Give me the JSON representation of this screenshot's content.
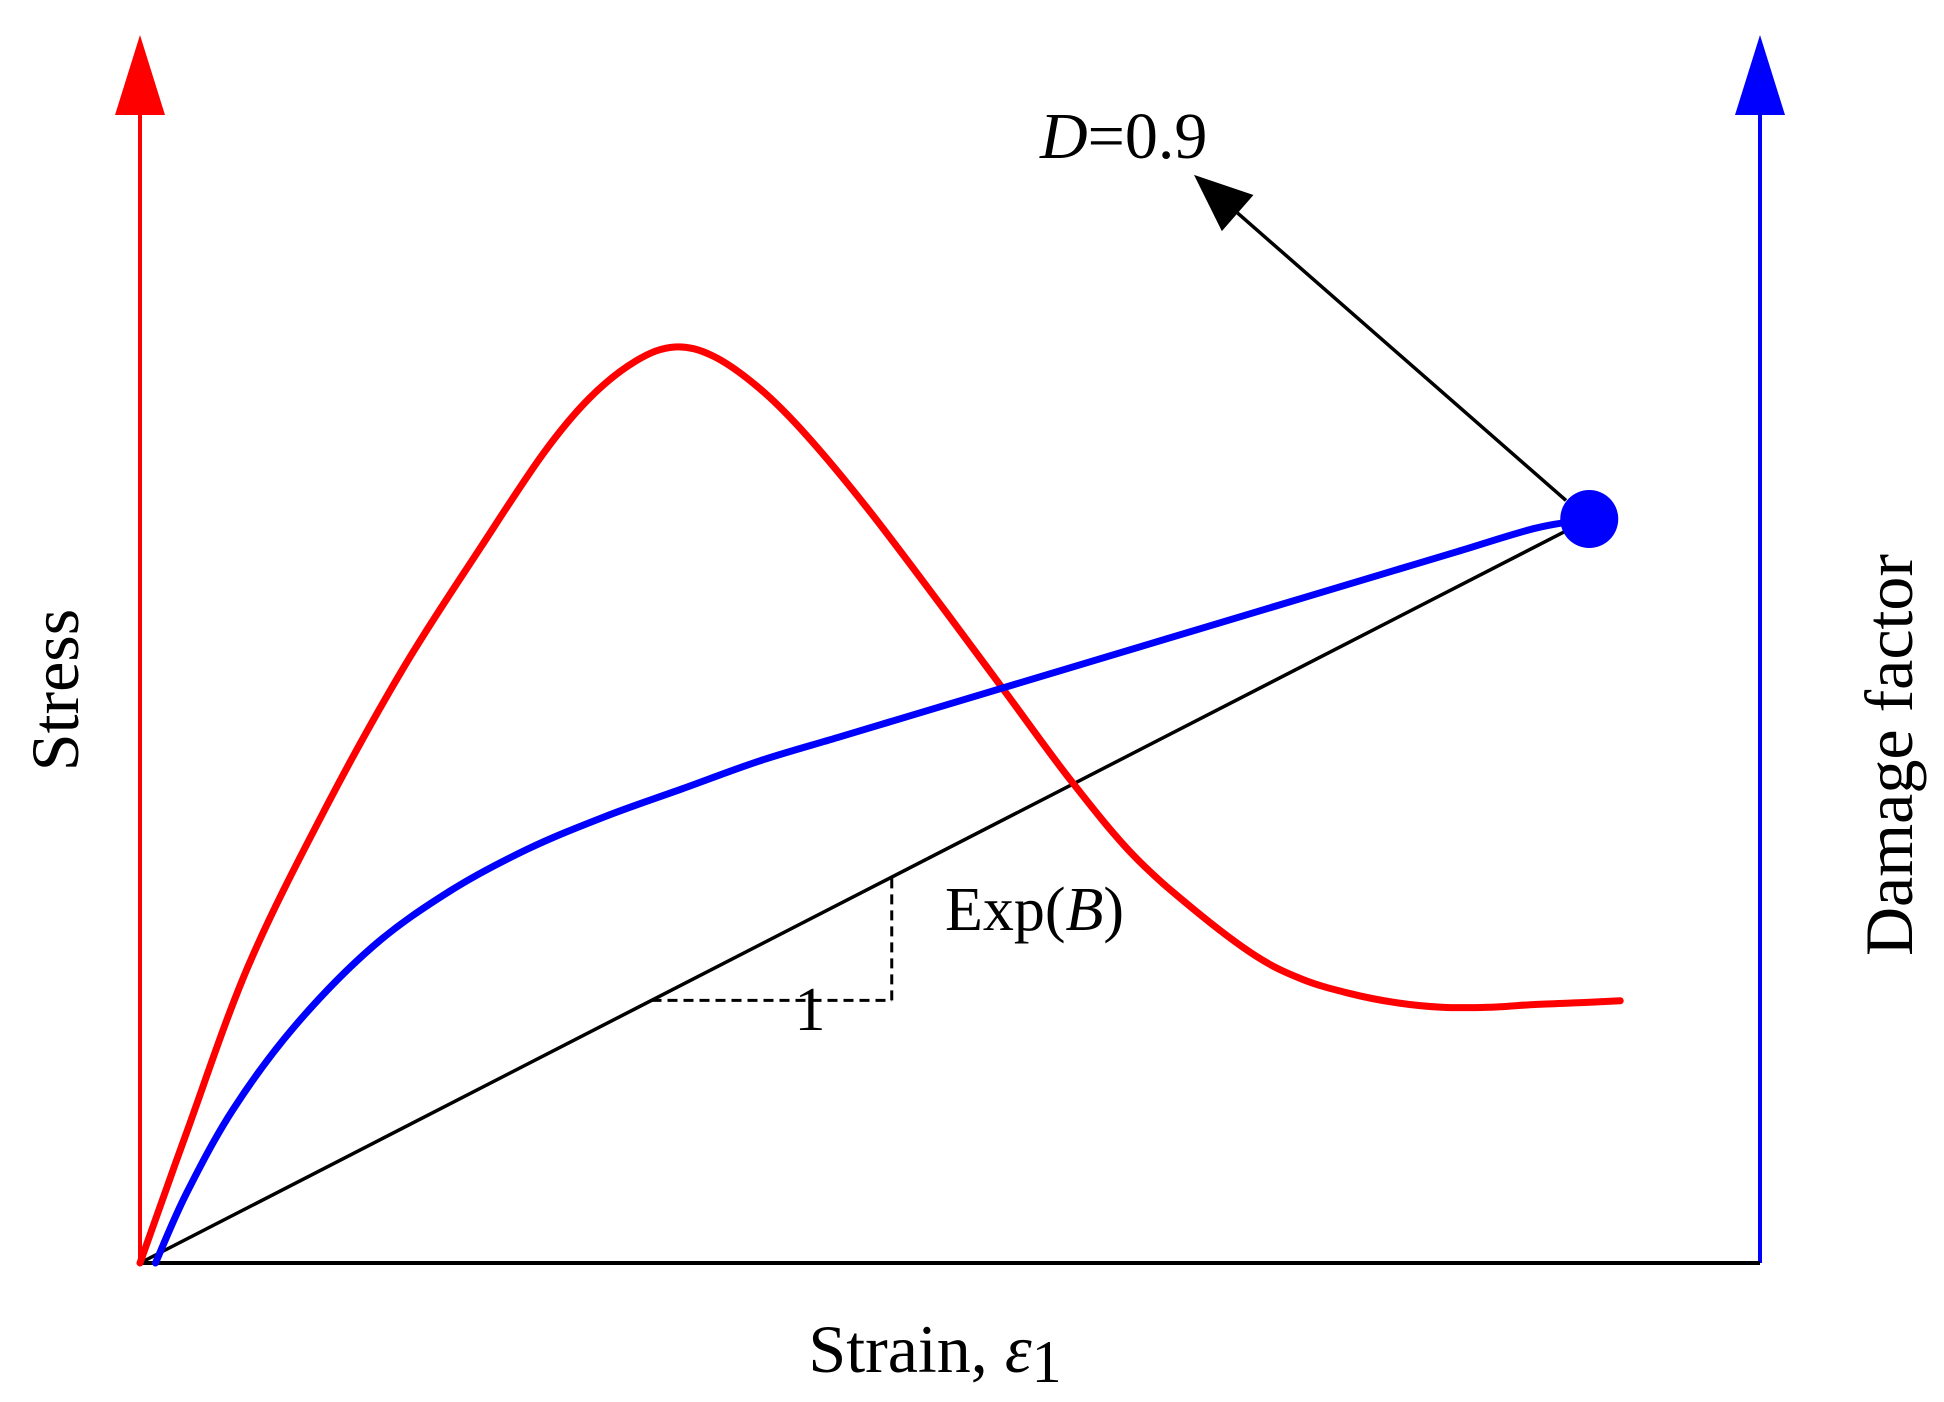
{
  "chart_data": {
    "type": "line",
    "title": "",
    "xlabel": "Strain, ",
    "xlabel_symbol": "ε",
    "xlabel_subscript": "1",
    "ylabel_left": "Stress",
    "ylabel_right": "Damage factor",
    "grid": false,
    "legend": "none",
    "xlim": [
      0,
      1
    ],
    "ylim": [
      0,
      1
    ],
    "ticks": "none",
    "series": [
      {
        "role": "stress-curve",
        "axis": "left",
        "color": "#ff0000",
        "x": [
          0.0,
          0.03,
          0.07,
          0.12,
          0.17,
          0.22,
          0.26,
          0.29,
          0.32,
          0.345,
          0.37,
          0.4,
          0.43,
          0.47,
          0.52,
          0.56,
          0.6,
          0.64,
          0.68,
          0.72,
          0.75,
          0.78,
          0.81,
          0.84,
          0.87,
          0.9,
          0.93,
          0.955
        ],
        "y": [
          0.0,
          0.14,
          0.32,
          0.49,
          0.64,
          0.77,
          0.87,
          0.93,
          0.97,
          0.985,
          0.975,
          0.94,
          0.89,
          0.81,
          0.7,
          0.61,
          0.52,
          0.44,
          0.38,
          0.33,
          0.305,
          0.29,
          0.28,
          0.275,
          0.275,
          0.278,
          0.28,
          0.282
        ]
      },
      {
        "role": "damage-curve",
        "axis": "right",
        "color": "#0000ff",
        "x": [
          0.01,
          0.03,
          0.06,
          0.1,
          0.15,
          0.2,
          0.25,
          0.3,
          0.35,
          0.4,
          0.45,
          0.5,
          0.55,
          0.6,
          0.65,
          0.7,
          0.75,
          0.8,
          0.85,
          0.9,
          0.935
        ],
        "y": [
          0.0,
          0.075,
          0.165,
          0.255,
          0.34,
          0.4,
          0.445,
          0.48,
          0.51,
          0.54,
          0.565,
          0.59,
          0.615,
          0.64,
          0.665,
          0.69,
          0.715,
          0.74,
          0.765,
          0.79,
          0.8
        ]
      }
    ],
    "marker": {
      "x": 0.935,
      "y": 0.8,
      "color": "#0000ff"
    },
    "reference_line": {
      "x": [
        0.0,
        0.935
      ],
      "y": [
        0.0,
        0.8
      ],
      "color": "#000000"
    },
    "slope_triangle": {
      "x_start": 0.33,
      "x_end": 0.485,
      "run_label": "1",
      "rise_label_prefix": "Exp(",
      "rise_label_var": "B",
      "rise_label_suffix": ")"
    },
    "annotation": {
      "var": "D",
      "rest": "=0.9",
      "arrow_from": {
        "x": 0.92,
        "y": 0.82
      },
      "arrow_to": {
        "x": 0.68,
        "y": 1.17
      }
    },
    "axis_colors": {
      "left": "#ff0000",
      "right": "#0000ff",
      "bottom": "#000000"
    }
  }
}
